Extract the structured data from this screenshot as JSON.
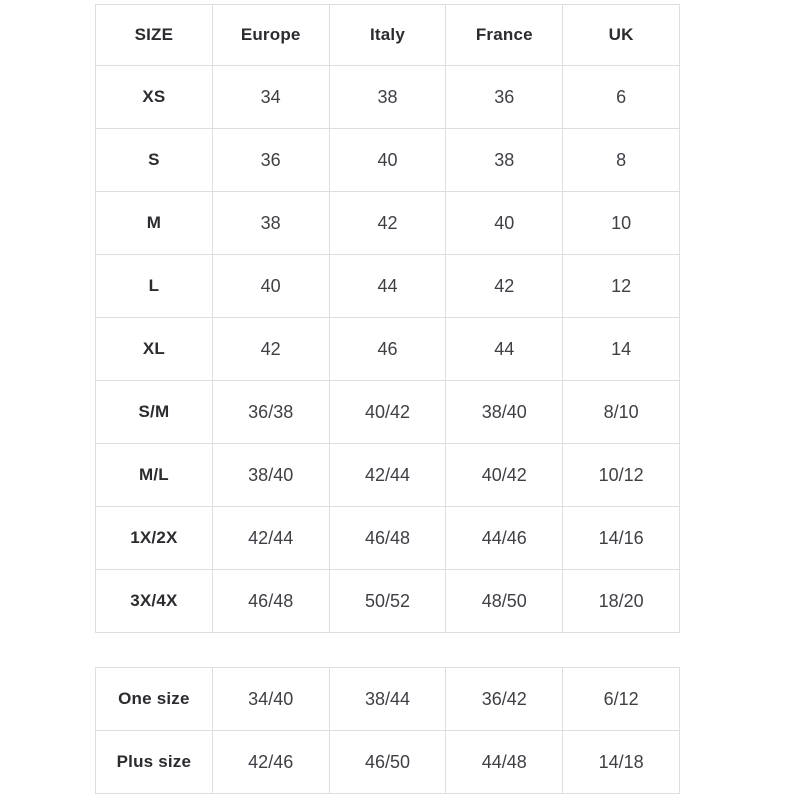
{
  "colors": {
    "border": "#dedede",
    "label_text": "#2b2b30",
    "value_text": "#3f3f46"
  },
  "main_table": {
    "headers": [
      "SIZE",
      "Europe",
      "Italy",
      "France",
      "UK"
    ],
    "rows": [
      {
        "label": "XS",
        "values": [
          "34",
          "38",
          "36",
          "6"
        ]
      },
      {
        "label": "S",
        "values": [
          "36",
          "40",
          "38",
          "8"
        ]
      },
      {
        "label": "M",
        "values": [
          "38",
          "42",
          "40",
          "10"
        ]
      },
      {
        "label": "L",
        "values": [
          "40",
          "44",
          "42",
          "12"
        ]
      },
      {
        "label": "XL",
        "values": [
          "42",
          "46",
          "44",
          "14"
        ]
      },
      {
        "label": "S/M",
        "values": [
          "36/38",
          "40/42",
          "38/40",
          "8/10"
        ]
      },
      {
        "label": "M/L",
        "values": [
          "38/40",
          "42/44",
          "40/42",
          "10/12"
        ]
      },
      {
        "label": "1X/2X",
        "values": [
          "42/44",
          "46/48",
          "44/46",
          "14/16"
        ]
      },
      {
        "label": "3X/4X",
        "values": [
          "46/48",
          "50/52",
          "48/50",
          "18/20"
        ]
      }
    ]
  },
  "secondary_table": {
    "rows": [
      {
        "label": "One size",
        "values": [
          "34/40",
          "38/44",
          "36/42",
          "6/12"
        ]
      },
      {
        "label": "Plus size",
        "values": [
          "42/46",
          "46/50",
          "44/48",
          "14/18"
        ]
      }
    ]
  }
}
